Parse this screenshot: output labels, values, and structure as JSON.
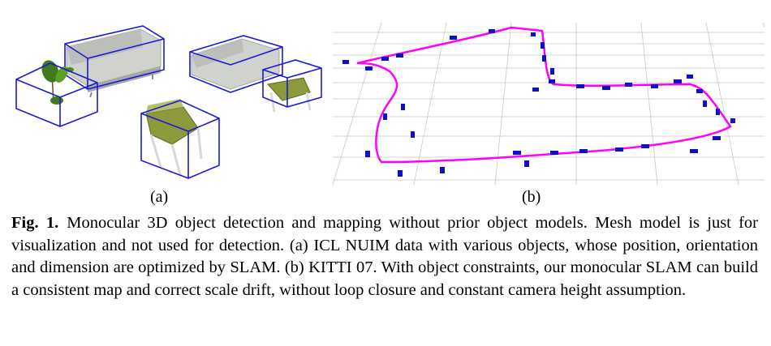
{
  "figure": {
    "label_a": "(a)",
    "label_b": "(b)",
    "caption_label": "Fig. 1.",
    "caption_text": "Monocular 3D object detection and mapping without prior object models. Mesh model is just for visualization and not used for detection. (a) ICL NUIM data with various objects, whose position, orientation and dimension are optimized by SLAM. (b) KITTI 07. With object constraints, our monocular SLAM can build a consistent map and correct scale drift, without loop closure and constant camera height assumption."
  },
  "colors": {
    "bounding_box": "#1a1ad6",
    "trajectory": "#ff00ff",
    "car_marker": "#1010c0",
    "grid": "#c8c8c8",
    "seat": "#8c9a3c",
    "plant": "#3f7a1e",
    "sofa": "#c9cbc6"
  }
}
